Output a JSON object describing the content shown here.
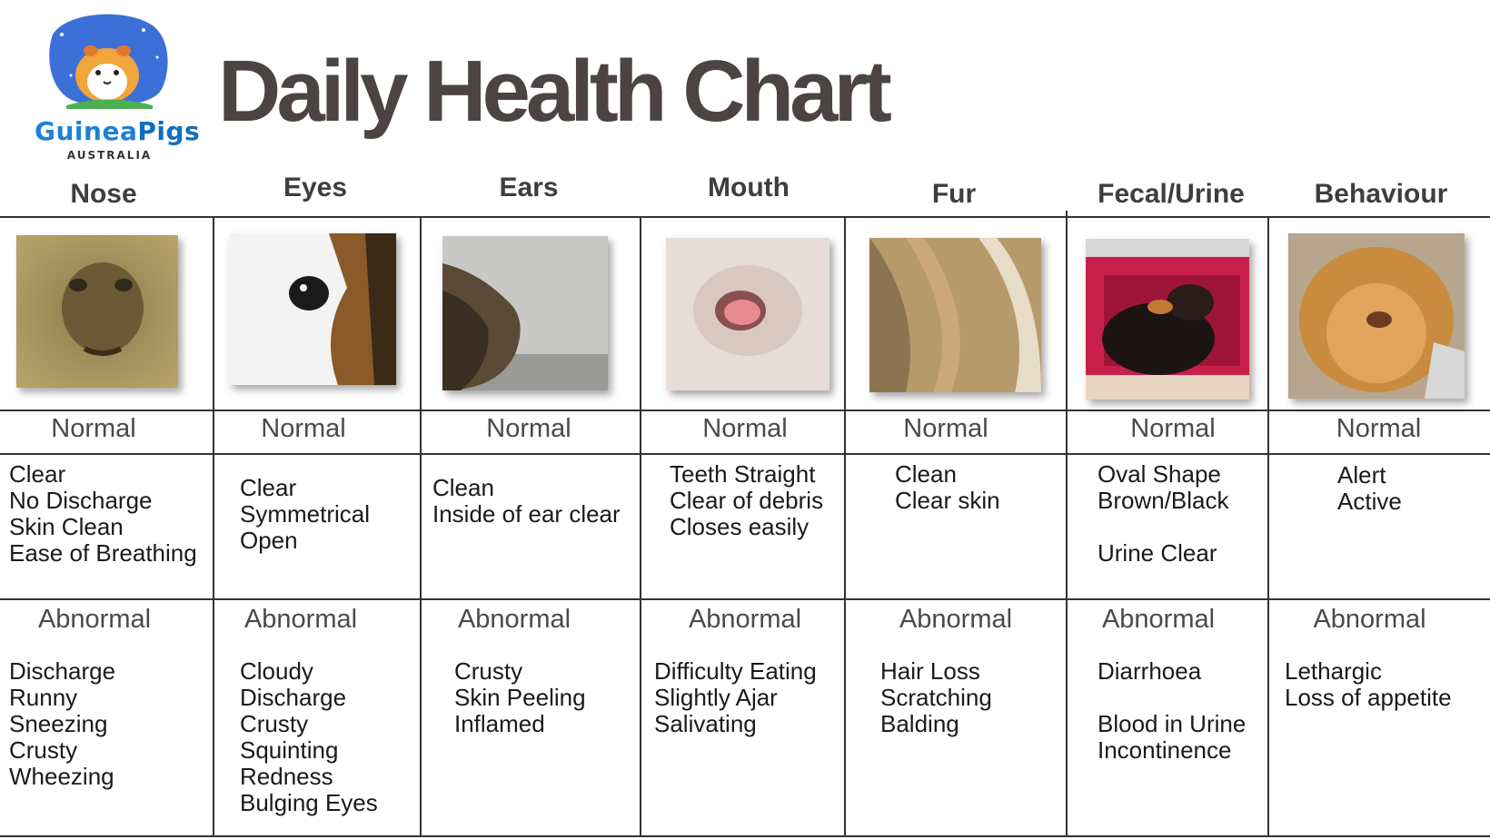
{
  "logo": {
    "brand_part1": "Guinea",
    "brand_part2": "Pigs",
    "sub": "AUSTRALIA"
  },
  "title": "Daily Health Chart",
  "columns": [
    {
      "header": "Nose",
      "normal_label": "Normal",
      "normal_items": "Clear\nNo Discharge\nSkin Clean\nEase of Breathing",
      "abnormal_label": "Abnormal",
      "abnormal_items": "Discharge\nRunny\nSneezing\nCrusty\nWheezing"
    },
    {
      "header": "Eyes",
      "normal_label": "Normal",
      "normal_items": "Clear\nSymmetrical\nOpen",
      "abnormal_label": "Abnormal",
      "abnormal_items": "Cloudy\nDischarge\nCrusty\nSquinting\nRedness\nBulging Eyes"
    },
    {
      "header": "Ears",
      "normal_label": "Normal",
      "normal_items": "Clean\nInside of ear clear",
      "abnormal_label": "Abnormal",
      "abnormal_items": "Crusty\nSkin Peeling\nInflamed"
    },
    {
      "header": "Mouth",
      "normal_label": "Normal",
      "normal_items": "Teeth Straight\nClear of debris\nCloses easily",
      "abnormal_label": "Abnormal",
      "abnormal_items": "Difficulty Eating\nSlightly Ajar\nSalivating"
    },
    {
      "header": "Fur",
      "normal_label": "Normal",
      "normal_items": "Clean\nClear skin",
      "abnormal_label": "Abnormal",
      "abnormal_items": "Hair Loss\nScratching\nBalding"
    },
    {
      "header": "Fecal/Urine",
      "normal_label": "Normal",
      "normal_items": "Oval Shape\nBrown/Black\n\nUrine Clear",
      "abnormal_label": "Abnormal",
      "abnormal_items": "Diarrhoea\n\nBlood in Urine\nIncontinence"
    },
    {
      "header": "Behaviour",
      "normal_label": "Normal",
      "normal_items": "Alert\nActive",
      "abnormal_label": "Abnormal",
      "abnormal_items": "Lethargic\nLoss of appetite"
    }
  ],
  "icons": {
    "nose": "guinea-pig-nose-photo",
    "eyes": "guinea-pig-eye-photo",
    "ears": "guinea-pig-ear-photo",
    "mouth": "guinea-pig-mouth-photo",
    "fur": "guinea-pig-fur-photo",
    "fecal": "guinea-pig-cage-photo",
    "behaviour": "guinea-pig-face-photo"
  },
  "colors": {
    "title": "#4b4442",
    "logo_blue": "#1e7fd6",
    "logo_bg": "#3b6fd8"
  }
}
